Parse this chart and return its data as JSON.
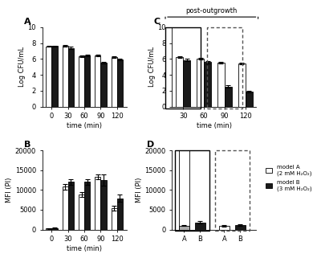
{
  "A": {
    "times": [
      0,
      30,
      60,
      90,
      120
    ],
    "white_vals": [
      7.6,
      7.7,
      6.35,
      6.4,
      6.25
    ],
    "black_vals": [
      7.65,
      7.4,
      6.4,
      5.5,
      5.9
    ],
    "white_err": [
      0.05,
      0.1,
      0.1,
      0.1,
      0.1
    ],
    "black_err": [
      0.05,
      0.15,
      0.1,
      0.1,
      0.1
    ],
    "ylabel": "Log CFU/mL",
    "xlabel": "time (min)",
    "ylim": [
      0,
      10
    ],
    "yticks": [
      0,
      2,
      4,
      6,
      8,
      10
    ]
  },
  "B": {
    "times": [
      0,
      30,
      60,
      90,
      120
    ],
    "white_vals": [
      300,
      10800,
      8800,
      13400,
      5400
    ],
    "black_vals": [
      400,
      12000,
      12000,
      12500,
      7900
    ],
    "white_err": [
      100,
      700,
      600,
      600,
      600
    ],
    "black_err": [
      100,
      700,
      700,
      1500,
      900
    ],
    "ylabel": "MFI (PI)",
    "xlabel": "time (min)",
    "ylim": [
      0,
      20000
    ],
    "yticks": [
      0,
      5000,
      10000,
      15000,
      20000
    ]
  },
  "C": {
    "times": [
      30,
      60,
      90,
      120
    ],
    "white_vals": [
      6.2,
      6.05,
      5.5,
      5.4
    ],
    "black_vals": [
      5.85,
      5.6,
      2.5,
      1.85
    ],
    "white_err": [
      0.1,
      0.1,
      0.1,
      0.1
    ],
    "black_err": [
      0.15,
      0.15,
      0.15,
      0.1
    ],
    "ylabel": "Log CFU/mL",
    "xlabel": "time (min)",
    "ylim": [
      0,
      10
    ],
    "yticks": [
      0,
      2,
      4,
      6,
      8,
      10
    ]
  },
  "D": {
    "groups1": [
      "A",
      "B"
    ],
    "groups2": [
      "A",
      "B"
    ],
    "white_vals1": [
      1000,
      1600
    ],
    "black_vals1": [
      500,
      1800
    ],
    "white_err1": [
      150,
      200
    ],
    "black_err1": [
      100,
      300
    ],
    "white_vals2": [
      900,
      1100
    ],
    "black_vals2": [
      400,
      1200
    ],
    "white_err2": [
      150,
      150
    ],
    "black_err2": [
      100,
      200
    ],
    "solid_white": 20000,
    "ylabel": "MFI (PI)",
    "ylim": [
      0,
      20000
    ],
    "yticks": [
      0,
      5000,
      10000,
      15000,
      20000
    ],
    "legend_white": "model A\n(2 mM H₂O₂)",
    "legend_black": "model B\n(3 mM H₂O₂)"
  },
  "bar_width": 0.35,
  "white_color": "#ffffff",
  "black_color": "#1a1a1a",
  "edge_color": "#000000",
  "label_fontsize": 6,
  "tick_fontsize": 6,
  "panel_label_fontsize": 8,
  "capsize": 2,
  "elinewidth": 0.8,
  "bar_linewidth": 0.6
}
